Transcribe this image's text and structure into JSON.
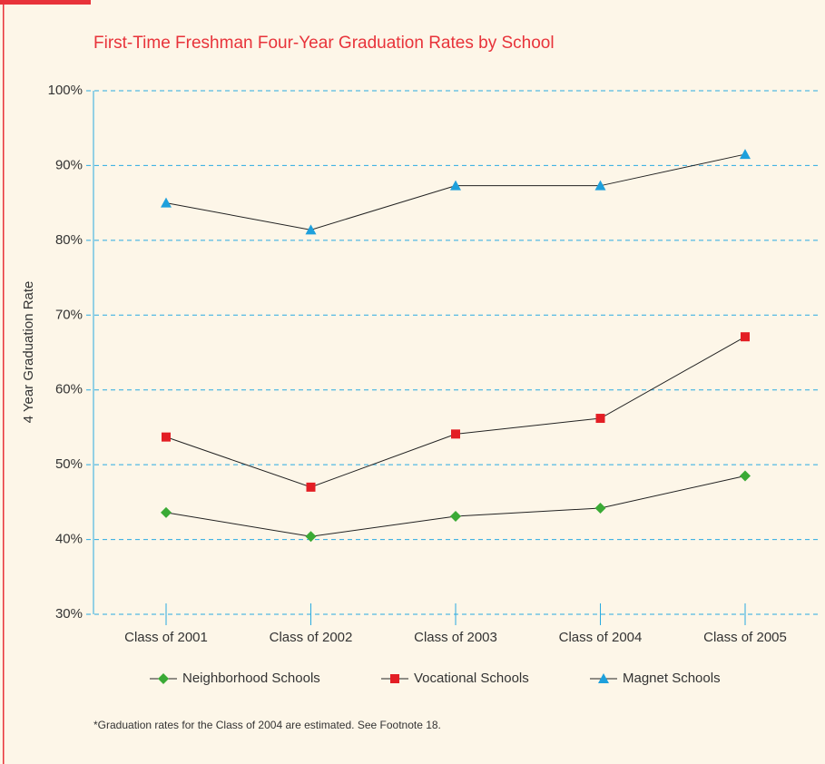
{
  "chart_data": {
    "type": "line",
    "title": "First-Time Freshman Four-Year Graduation Rates by School",
    "ylabel": "4 Year Graduation Rate",
    "footnote": "*Graduation rates for the Class of 2004 are estimated. See Footnote 18.",
    "categories": [
      "Class of 2001",
      "Class of 2002",
      "Class of 2003",
      "Class of 2004",
      "Class of 2005"
    ],
    "series": [
      {
        "name": "Neighborhood Schools",
        "color": "#3aaa35",
        "marker": "diamond",
        "values": [
          43.6,
          40.4,
          43.1,
          44.2,
          48.5
        ]
      },
      {
        "name": "Vocational Schools",
        "color": "#e31e24",
        "marker": "square",
        "values": [
          53.7,
          47.0,
          54.1,
          56.2,
          67.1
        ]
      },
      {
        "name": "Magnet Schools",
        "color": "#1ea0dc",
        "marker": "triangle",
        "values": [
          85.0,
          81.4,
          87.3,
          87.3,
          91.5
        ]
      }
    ],
    "ylim": [
      30,
      100
    ],
    "yticks": [
      {
        "value": 30,
        "label": "30%"
      },
      {
        "value": 40,
        "label": "40%"
      },
      {
        "value": 50,
        "label": "50%"
      },
      {
        "value": 60,
        "label": "60%"
      },
      {
        "value": 70,
        "label": "70%"
      },
      {
        "value": 80,
        "label": "80%"
      },
      {
        "value": 90,
        "label": "90%"
      },
      {
        "value": 100,
        "label": "100%"
      }
    ],
    "grid": true,
    "grid_color": "#29aae1",
    "line_color": "#222"
  }
}
